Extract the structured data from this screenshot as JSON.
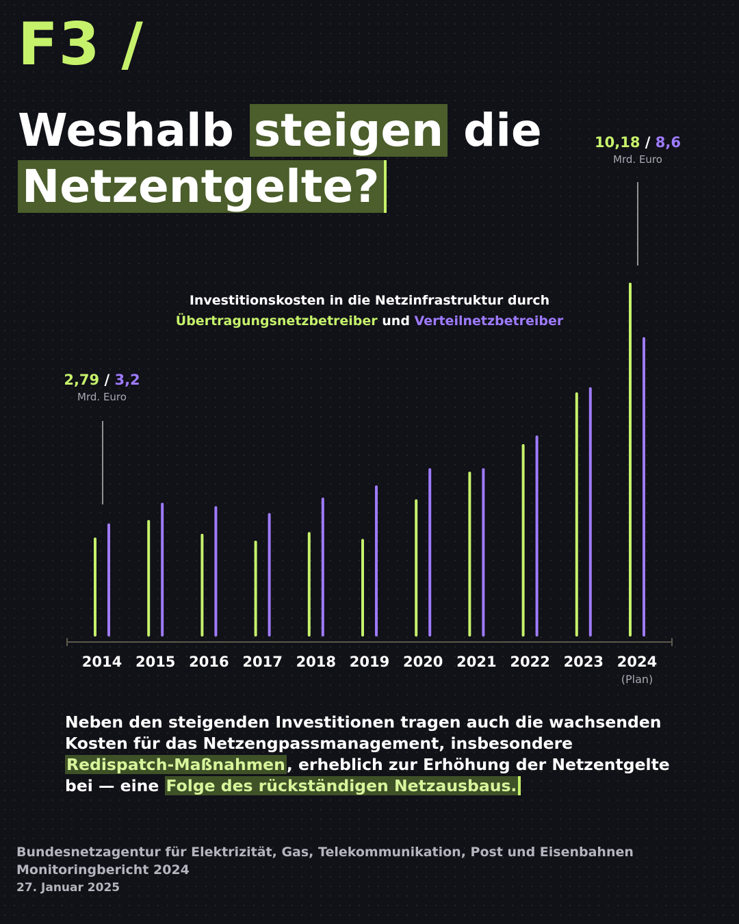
{
  "tag": "F3 /",
  "headline": {
    "part1": "Weshalb ",
    "highlight1": "steigen",
    "part2": " die",
    "highlight2": "Netzentgelte?"
  },
  "chart_title": {
    "line1": "Investitionskosten in die Netzinfrastruktur durch",
    "series1": "Übertragungsnetzbetreiber",
    "connector": " und ",
    "series2": "Verteilnetzbetreiber"
  },
  "callouts": {
    "left": {
      "v1": "2,79",
      "sep": " / ",
      "v2": "3,2",
      "unit": "Mrd. Euro"
    },
    "right": {
      "v1": "10,18",
      "sep": " / ",
      "v2": "8,6",
      "unit": "Mrd. Euro"
    }
  },
  "chart_data": {
    "type": "bar",
    "categories": [
      "2014",
      "2015",
      "2016",
      "2017",
      "2018",
      "2019",
      "2020",
      "2021",
      "2022",
      "2023",
      "2024"
    ],
    "category_notes": [
      "",
      "",
      "",
      "",
      "",
      "",
      "",
      "",
      "",
      "",
      "(Plan)"
    ],
    "series": [
      {
        "name": "Übertragungsnetzbetreiber",
        "color": "#c6f26b",
        "values": [
          2.79,
          3.3,
          2.9,
          2.7,
          2.95,
          2.75,
          3.9,
          4.7,
          5.5,
          7.0,
          10.18
        ]
      },
      {
        "name": "Verteilnetzbetreiber",
        "color": "#9e7bff",
        "values": [
          3.2,
          3.8,
          3.7,
          3.5,
          3.95,
          4.3,
          4.8,
          4.8,
          5.75,
          7.15,
          8.6
        ]
      }
    ],
    "unit": "Mrd. Euro",
    "ylim": [
      0,
      10.18
    ],
    "grid": false,
    "legend": "top-center"
  },
  "body": {
    "t1": "Neben den steigenden Investitionen tragen auch die wachsenden Kosten für das Netzengpassmanagement, insbesondere ",
    "h1": "Redispatch-Maßnahmen",
    "t2": ", erheblich zur Erhöhung der Netzentgelte bei — eine ",
    "h2": "Folge des rückständigen Netzausbaus."
  },
  "source": {
    "line1": "Bundesnetzagentur für Elektrizität, Gas, Telekommunikation, Post und Eisenbahnen",
    "line2": "Monitoringbericht 2024",
    "line3": "27. Januar 2025"
  }
}
